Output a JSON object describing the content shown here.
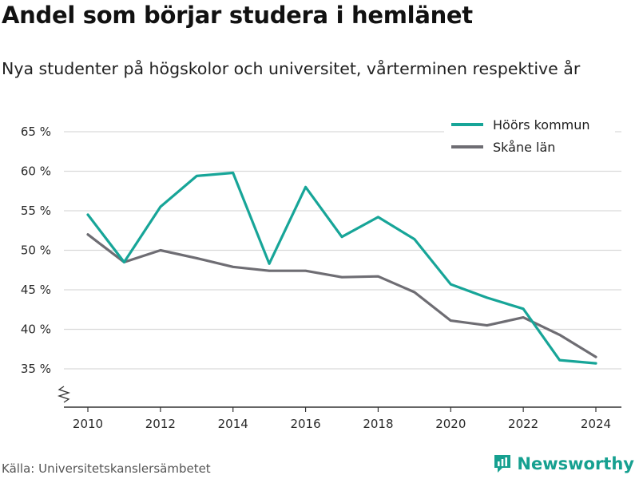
{
  "title": "Andel som börjar studera i hemlänet",
  "subtitle": "Nya studenter på högskolor och universitet, vårterminen respektive år",
  "source": "Källa: Universitetskanslersämbetet",
  "brand": {
    "name": "Newsworthy",
    "icon": "newsworthy-logo-icon",
    "color": "#16a090"
  },
  "chart_data": {
    "type": "line",
    "x": [
      2010,
      2011,
      2012,
      2013,
      2014,
      2015,
      2016,
      2017,
      2018,
      2019,
      2020,
      2021,
      2022,
      2023,
      2024
    ],
    "series": [
      {
        "name": "Höörs kommun",
        "color": "#17a598",
        "values": [
          54.5,
          48.5,
          55.5,
          59.4,
          59.8,
          48.3,
          58.0,
          51.7,
          54.2,
          51.4,
          45.7,
          44.0,
          42.6,
          36.1,
          35.7
        ]
      },
      {
        "name": "Skåne län",
        "color": "#6e6d73",
        "values": [
          52.0,
          48.5,
          50.0,
          49.0,
          47.9,
          47.4,
          47.4,
          46.6,
          46.7,
          44.7,
          41.1,
          40.5,
          41.5,
          39.3,
          36.5
        ]
      }
    ],
    "xticks": [
      2010,
      2012,
      2014,
      2016,
      2018,
      2020,
      2022,
      2024
    ],
    "xtick_labels": [
      "2010",
      "2012",
      "2014",
      "2016",
      "2018",
      "2020",
      "2022",
      "2024"
    ],
    "yticks": [
      35,
      40,
      45,
      50,
      55,
      60,
      65
    ],
    "ytick_labels": [
      "35 %",
      "40 %",
      "45 %",
      "50 %",
      "55 %",
      "60 %",
      "65 %"
    ],
    "ylim": [
      30,
      65
    ],
    "xlim": [
      2010,
      2024
    ],
    "axis_break": true,
    "grid": true,
    "legend_position": "top-right"
  }
}
